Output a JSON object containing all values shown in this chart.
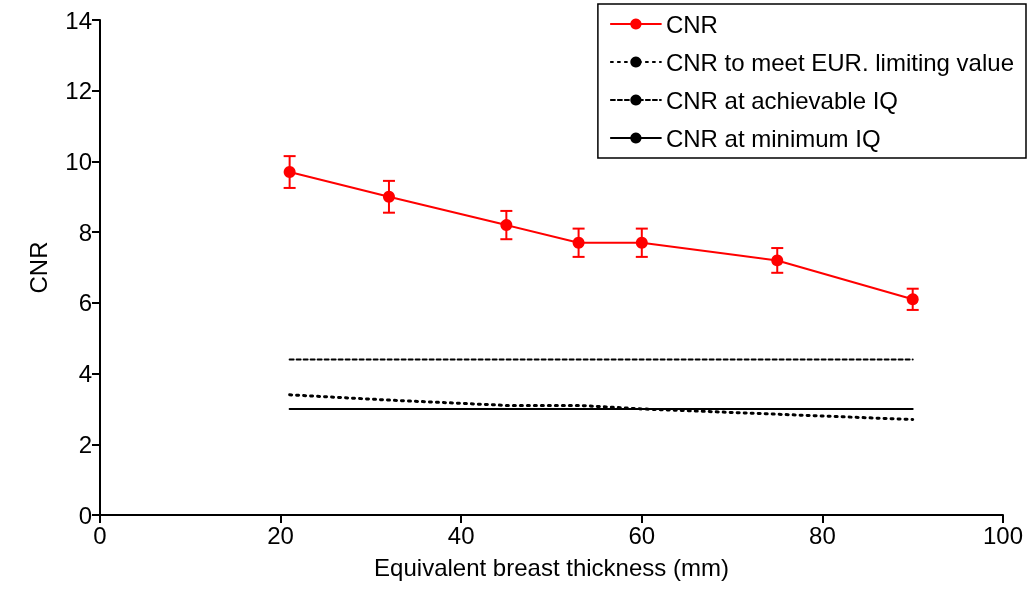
{
  "chart_data": {
    "type": "line",
    "xlabel": "Equivalent breast thickness (mm)",
    "ylabel": "CNR",
    "x": [
      21,
      32,
      45,
      53,
      60,
      75,
      90
    ],
    "series": [
      {
        "name": "CNR",
        "color": "#ff0000",
        "values": [
          9.7,
          9.0,
          8.2,
          7.7,
          7.7,
          7.2,
          6.1
        ],
        "errors": [
          0.45,
          0.45,
          0.4,
          0.4,
          0.4,
          0.35,
          0.3
        ],
        "marker": "circle",
        "line_style": "solid"
      },
      {
        "name": "CNR to meet EUR. limiting value",
        "color": "#000000",
        "values": [
          3.4,
          3.25,
          3.1,
          3.1,
          3.0,
          2.85,
          2.7
        ],
        "marker": "none",
        "line_style": "dotted"
      },
      {
        "name": "CNR at achievable IQ",
        "color": "#000000",
        "values": [
          4.4,
          4.4,
          4.4,
          4.4,
          4.4,
          4.4,
          4.4
        ],
        "marker": "none",
        "line_style": "dashed"
      },
      {
        "name": "CNR at minimum IQ",
        "color": "#000000",
        "values": [
          3.0,
          3.0,
          3.0,
          3.0,
          3.0,
          3.0,
          3.0
        ],
        "marker": "none",
        "line_style": "solid"
      }
    ],
    "xlim": [
      0,
      100
    ],
    "xticks": [
      0,
      20,
      40,
      60,
      80,
      100
    ],
    "ylim": [
      0,
      14
    ],
    "yticks": [
      0,
      2,
      4,
      6,
      8,
      10,
      12,
      14
    ],
    "grid": false,
    "legend": "top right"
  }
}
